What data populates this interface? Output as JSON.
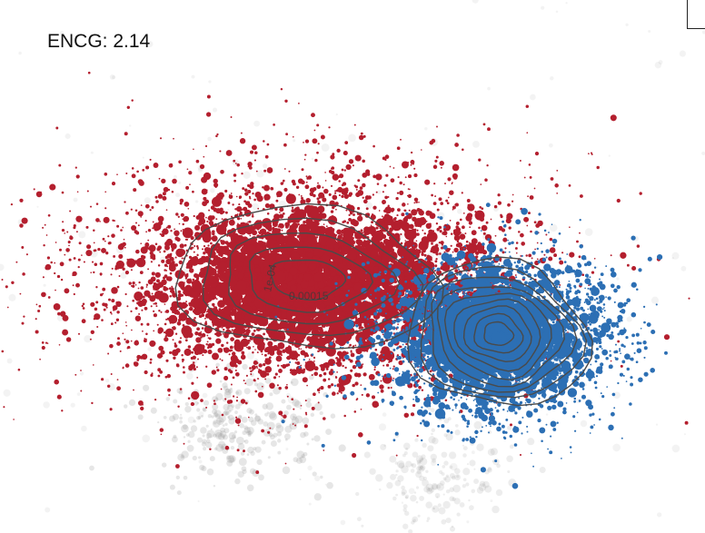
{
  "header": {
    "title": "ENCG: 2.14"
  },
  "chart_data": {
    "type": "scatter",
    "title": "ENCG: 2.14",
    "xlabel": "",
    "ylabel": "",
    "grid": false,
    "axes_visible": false,
    "colors": {
      "group_a": "#b41f2e",
      "group_b": "#2c6fb4",
      "background_points": "#9a9a9a",
      "contour": "#4a4a4a"
    },
    "groups": [
      {
        "color_key": "group_a",
        "center": [
          0.44,
          0.53
        ],
        "spread": [
          0.16,
          0.11
        ],
        "dense_core": [
          0.09,
          0.055
        ]
      },
      {
        "color_key": "group_b",
        "center": [
          0.7,
          0.63
        ],
        "spread": [
          0.085,
          0.075
        ],
        "dense_core": [
          0.055,
          0.05
        ]
      }
    ],
    "contour_labels": [
      "0.00015",
      "1e-04"
    ]
  }
}
